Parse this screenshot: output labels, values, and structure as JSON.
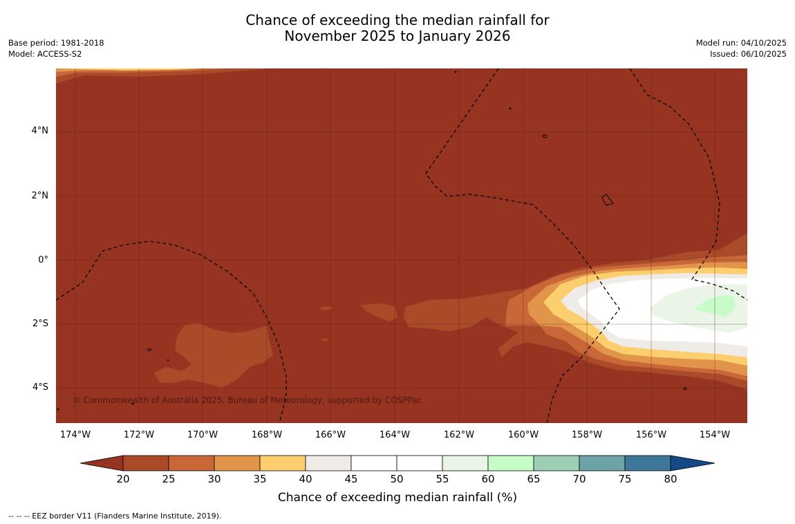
{
  "title": {
    "line1": "Chance of exceeding the median rainfall for",
    "line2": "November 2025 to January 2026"
  },
  "meta_left": {
    "base_period": "Base period: 1981-2018",
    "model": "Model: ACCESS-S2"
  },
  "meta_right": {
    "model_run": "Model run: 04/10/2025",
    "issued": "Issued: 06/10/2025"
  },
  "map": {
    "lat_labels": [
      "4°N",
      "2°N",
      "0°",
      "2°S",
      "4°S"
    ],
    "lon_labels": [
      "174°W",
      "172°W",
      "170°W",
      "168°W",
      "166°W",
      "164°W",
      "162°W",
      "160°W",
      "158°W",
      "156°W",
      "154°W"
    ],
    "copyright": "© Commonwealth of Australia 2025, Bureau of Meteorology, supported by COSPPac",
    "background_color": "#973421"
  },
  "colorbar": {
    "ticks": [
      "20",
      "25",
      "30",
      "35",
      "40",
      "45",
      "50",
      "55",
      "60",
      "65",
      "70",
      "75",
      "80"
    ],
    "colors": [
      "#973421",
      "#a94a29",
      "#c96738",
      "#e0954a",
      "#fdce6e",
      "#efebe6",
      "#ffffff",
      "#ffffff",
      "#eaf5e8",
      "#c7fcc8",
      "#9ecfb4",
      "#6da2a6",
      "#3e7798",
      "#134a85"
    ],
    "label": "Chance of exceeding median rainfall (%)"
  },
  "footnote": "--  --  -- EEZ border V11 (Flanders Marine Institute, 2019)."
}
